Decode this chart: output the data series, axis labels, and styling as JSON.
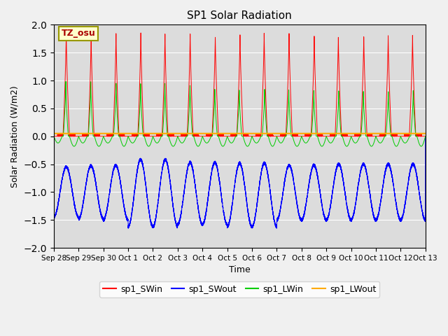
{
  "title": "SP1 Solar Radiation",
  "xlabel": "Time",
  "ylabel": "Solar Radiation (W/m2)",
  "ylim": [
    -2.0,
    2.0
  ],
  "yticks": [
    -2.0,
    -1.5,
    -1.0,
    -0.5,
    0.0,
    0.5,
    1.0,
    1.5,
    2.0
  ],
  "x_end_days": 15,
  "n_points": 10000,
  "bg_color": "#dcdcdc",
  "fig_color": "#f0f0f0",
  "line_colors": {
    "sp1_SWin": "#ff0000",
    "sp1_SWout": "#0000ff",
    "sp1_LWin": "#00cc00",
    "sp1_LWout": "#ffaa00"
  },
  "tz_label": "TZ_osu",
  "x_tick_labels": [
    "Sep 28",
    "Sep 29",
    "Sep 30",
    "Oct 1",
    "Oct 2",
    "Oct 3",
    "Oct 4",
    "Oct 5",
    "Oct 6",
    "Oct 7",
    "Oct 8",
    "Oct 9",
    "Oct 10",
    "Oct 11",
    "Oct 12",
    "Oct 13"
  ],
  "x_tick_positions": [
    0,
    1,
    2,
    3,
    4,
    5,
    6,
    7,
    8,
    9,
    10,
    11,
    12,
    13,
    14,
    15
  ],
  "grid_color": "#ffffff",
  "grid_linewidth": 0.8,
  "lw_out_value": 0.05
}
